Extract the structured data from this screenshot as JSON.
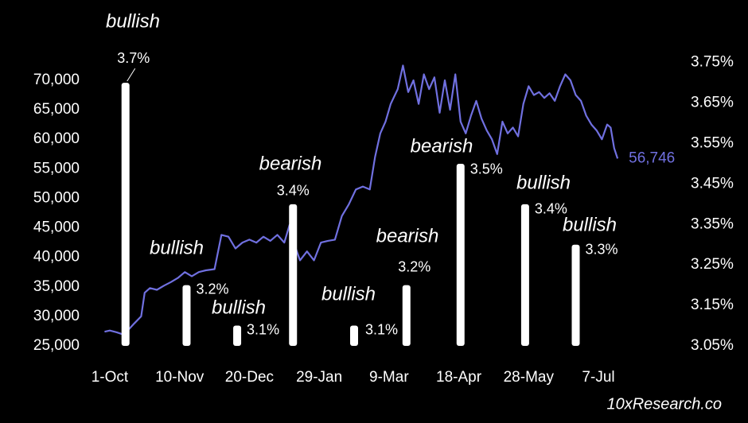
{
  "chart_data": {
    "type": "line-bar",
    "source": "10xResearch.co",
    "xlim": [
      -4.5,
      297
    ],
    "xticks": [
      {
        "value": 0,
        "label": "1-Oct"
      },
      {
        "value": 40,
        "label": "10-Nov"
      },
      {
        "value": 80,
        "label": "20-Dec"
      },
      {
        "value": 120,
        "label": "29-Jan"
      },
      {
        "value": 160,
        "label": "9-Mar"
      },
      {
        "value": 200,
        "label": "18-Apr"
      },
      {
        "value": 240,
        "label": "28-May"
      },
      {
        "value": 280,
        "label": "7-Jul"
      }
    ],
    "ylim": [
      25000,
      73000
    ],
    "yticks": [
      {
        "value": 25000,
        "label": "25,000"
      },
      {
        "value": 30000,
        "label": "30,000"
      },
      {
        "value": 35000,
        "label": "35,000"
      },
      {
        "value": 40000,
        "label": "40,000"
      },
      {
        "value": 45000,
        "label": "45,000"
      },
      {
        "value": 50000,
        "label": "50,000"
      },
      {
        "value": 55000,
        "label": "55,000"
      },
      {
        "value": 60000,
        "label": "60,000"
      },
      {
        "value": 65000,
        "label": "65,000"
      },
      {
        "value": 70000,
        "label": "70,000"
      }
    ],
    "y2lim": [
      3.05,
      3.75
    ],
    "y2ticks": [
      {
        "value": 3.05,
        "label": "3.05%"
      },
      {
        "value": 3.15,
        "label": "3.15%"
      },
      {
        "value": 3.25,
        "label": "3.25%"
      },
      {
        "value": 3.35,
        "label": "3.35%"
      },
      {
        "value": 3.45,
        "label": "3.45%"
      },
      {
        "value": 3.55,
        "label": "3.55%"
      },
      {
        "value": 3.65,
        "label": "3.65%"
      },
      {
        "value": 3.75,
        "label": "3.75%"
      }
    ],
    "line": {
      "type": "line",
      "color": "#7070e0",
      "x": [
        -3,
        0,
        4,
        8,
        10,
        14,
        18,
        20,
        23,
        27,
        31,
        35,
        39,
        43,
        47,
        51,
        55,
        60,
        64,
        68,
        72,
        76,
        80,
        84,
        88,
        92,
        96,
        100,
        103,
        106,
        109,
        113,
        117,
        121,
        125,
        129,
        133,
        137,
        141,
        145,
        149,
        152,
        155,
        158,
        161,
        165,
        168,
        171,
        174,
        177,
        180,
        183,
        186,
        189,
        192,
        195,
        198,
        201,
        204,
        207,
        210,
        213,
        216,
        219,
        222,
        225,
        228,
        231,
        234,
        237,
        240,
        243,
        246,
        249,
        252,
        255,
        258,
        261,
        264,
        267,
        270,
        273,
        276,
        279,
        282,
        285,
        287,
        289,
        291
      ],
      "values": [
        27400,
        27600,
        27300,
        26900,
        27500,
        28800,
        30000,
        34000,
        34800,
        34500,
        35200,
        35800,
        36500,
        37500,
        36800,
        37500,
        37800,
        38000,
        43800,
        43500,
        41500,
        42500,
        43000,
        42500,
        43500,
        42800,
        43800,
        42500,
        45500,
        42000,
        39500,
        41000,
        39500,
        42500,
        42800,
        43000,
        47000,
        49000,
        51500,
        52000,
        51500,
        57000,
        61000,
        63000,
        66000,
        68500,
        72500,
        68000,
        70000,
        66000,
        71000,
        68500,
        70500,
        64500,
        70000,
        65000,
        71000,
        63000,
        61000,
        64000,
        66500,
        63500,
        61500,
        60000,
        57500,
        63000,
        61000,
        62000,
        60500,
        66000,
        69000,
        67500,
        68000,
        67000,
        67800,
        66500,
        69000,
        71000,
        70000,
        67500,
        66500,
        64000,
        62500,
        61500,
        60000,
        62500,
        62000,
        58500,
        56746
      ],
      "value_labels": [
        null,
        null,
        null,
        null,
        null,
        null,
        null,
        null,
        null,
        null,
        null,
        null,
        null,
        null,
        null,
        null,
        null,
        null,
        null,
        null,
        null,
        null,
        null,
        null,
        null,
        null,
        null,
        null,
        null,
        null,
        null,
        null,
        null,
        null,
        null,
        null,
        null,
        null,
        null,
        null,
        null,
        null,
        null,
        null,
        null,
        null,
        null,
        null,
        null,
        null,
        null,
        null,
        null,
        null,
        null,
        null,
        null,
        null,
        null,
        null,
        null,
        null,
        null,
        null,
        null,
        null,
        null,
        null,
        null,
        null,
        null,
        null,
        null,
        null,
        null,
        null,
        null,
        null,
        null,
        null,
        null,
        null,
        null,
        null,
        null,
        null,
        null,
        null,
        "56,746"
      ]
    },
    "bars": {
      "type": "bar",
      "axis": "y2",
      "color": "#ffffff",
      "x": [
        9,
        44,
        73,
        105,
        140,
        170,
        201,
        238,
        267
      ],
      "values": [
        3.7,
        3.2,
        3.1,
        3.4,
        3.1,
        3.2,
        3.5,
        3.4,
        3.3
      ],
      "value_labels": [
        "3.7%",
        "3.2%",
        "3.1%",
        "3.4%",
        "3.1%",
        "3.2%",
        "3.5%",
        "3.4%",
        "3.3%"
      ],
      "sentiments": [
        "bullish",
        "bullish",
        "bullish",
        "bearish",
        "bullish",
        "bearish",
        "bearish",
        "bullish",
        "bullish"
      ]
    }
  }
}
